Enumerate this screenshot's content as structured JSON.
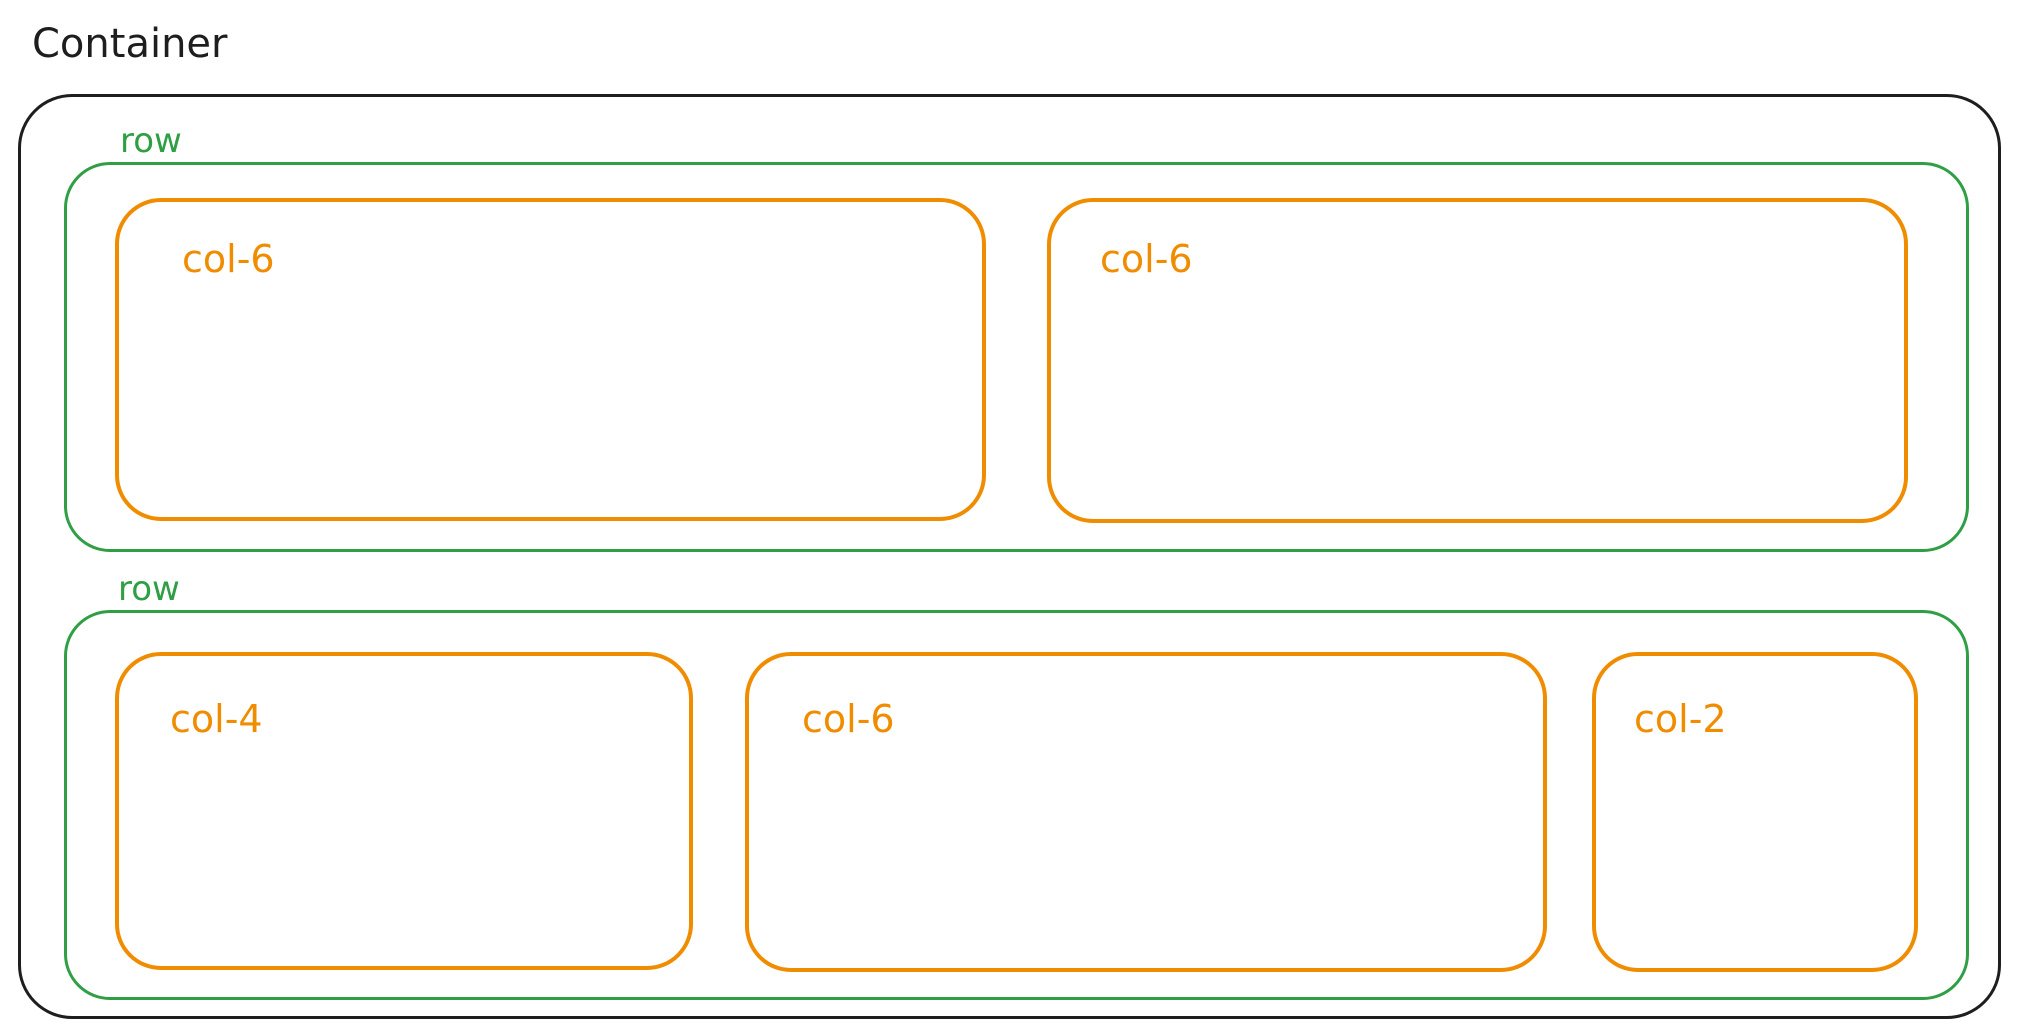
{
  "title": "Container",
  "rows": [
    {
      "label": "row",
      "cols": [
        {
          "label": "col-6"
        },
        {
          "label": "col-6"
        }
      ]
    },
    {
      "label": "row",
      "cols": [
        {
          "label": "col-4"
        },
        {
          "label": "col-6"
        },
        {
          "label": "col-2"
        }
      ]
    }
  ],
  "colors": {
    "container": "#1e1e1e",
    "row": "#2f9e44",
    "col": "#f08c00"
  }
}
